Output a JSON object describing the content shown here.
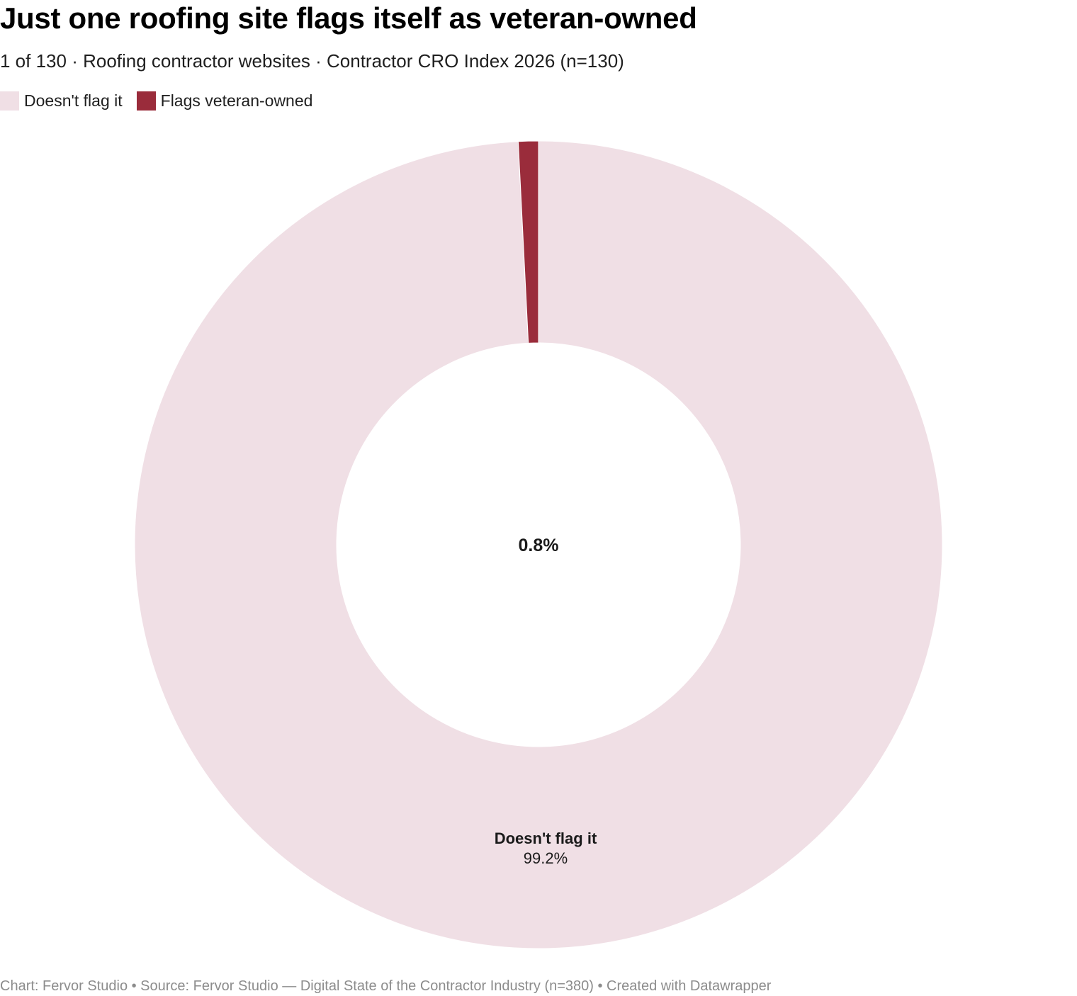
{
  "header": {
    "title": "Just one roofing site flags itself as veteran-owned",
    "subtitle": "1 of 130 · Roofing contractor websites · Contractor CRO Index 2026 (n=130)"
  },
  "chart_data": {
    "type": "pie",
    "variant": "donut",
    "legend_placement": "top-left",
    "center_label": "0.8%",
    "slices": [
      {
        "name": "Doesn't flag it",
        "value": 99.2,
        "label": "99.2%",
        "color": "#f0dfe5"
      },
      {
        "name": "Flags veteran-owned",
        "value": 0.8,
        "label": "0.8%",
        "color": "#9a2c3b"
      }
    ]
  },
  "footer": {
    "text": "Chart: Fervor Studio • Source: Fervor Studio — Digital State of the Contractor Industry (n=380) • Created with Datawrapper"
  }
}
